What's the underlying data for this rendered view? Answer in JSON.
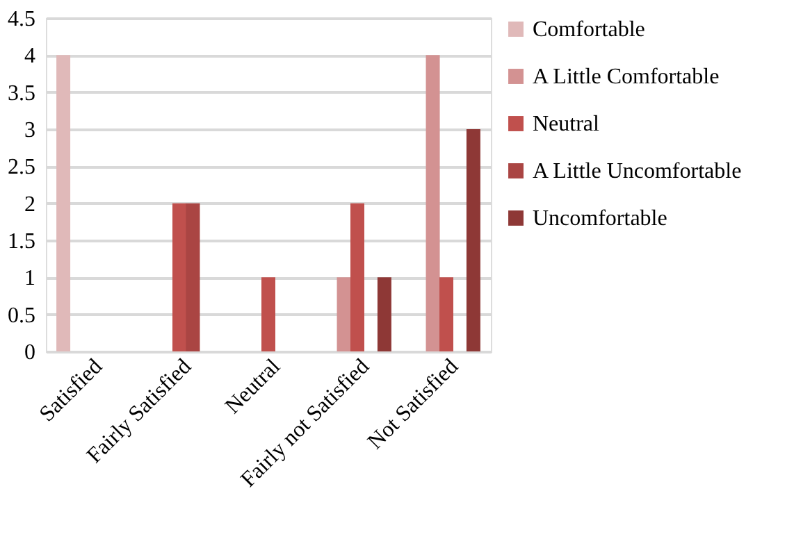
{
  "chart_data": {
    "type": "bar",
    "categories": [
      "Satisfied",
      "Fairly Satisfied",
      "Neutral",
      "Fairly not Satisfied",
      "Not Satisfied"
    ],
    "series": [
      {
        "name": "Comfortable",
        "color": "#e0b9b9",
        "values": [
          4,
          0,
          0,
          0,
          0
        ]
      },
      {
        "name": "A Little Comfortable",
        "color": "#d39292",
        "values": [
          0,
          0,
          0,
          1,
          4
        ]
      },
      {
        "name": "Neutral",
        "color": "#c0504d",
        "values": [
          0,
          2,
          1,
          2,
          1
        ]
      },
      {
        "name": "A Little Uncomfortable",
        "color": "#aa4543",
        "values": [
          0,
          2,
          0,
          0,
          0
        ]
      },
      {
        "name": "Uncomfortable",
        "color": "#8e3836",
        "values": [
          0,
          0,
          0,
          1,
          3
        ]
      }
    ],
    "ylim": [
      0,
      4.5
    ],
    "yticks": [
      0,
      0.5,
      1,
      1.5,
      2,
      2.5,
      3,
      3.5,
      4,
      4.5
    ],
    "grid": "y",
    "legend": "right"
  }
}
